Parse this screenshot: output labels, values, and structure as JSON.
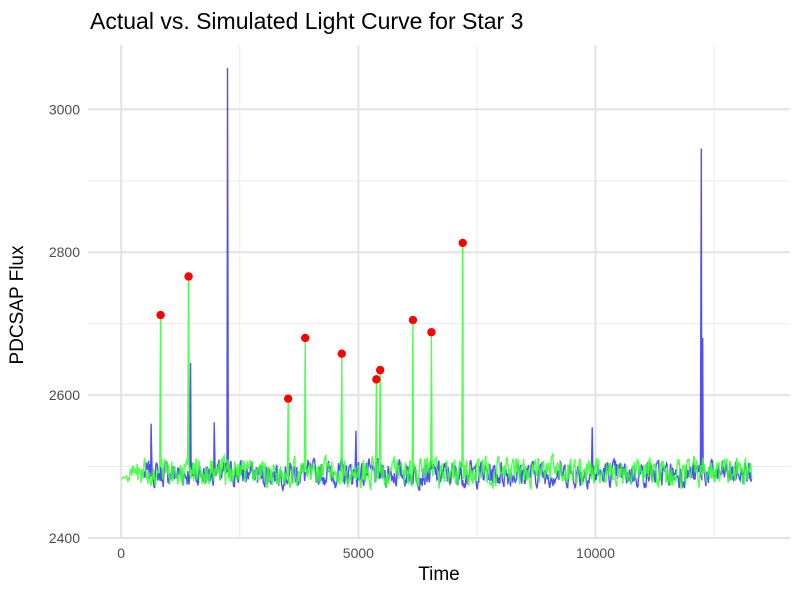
{
  "chart_data": {
    "type": "line",
    "title": "Actual vs. Simulated Light Curve for Star 3",
    "xlabel": "Time",
    "ylabel": "PDCSAP Flux",
    "xlim": [
      -700,
      14100
    ],
    "ylim": [
      2400,
      3090
    ],
    "x_ticks": [
      0,
      5000,
      10000
    ],
    "x_tick_labels": [
      "0",
      "5000",
      "10000"
    ],
    "y_ticks": [
      2400,
      2600,
      2800,
      3000
    ],
    "y_tick_labels": [
      "2400",
      "2600",
      "2800",
      "3000"
    ],
    "grid": true,
    "legend": "none",
    "series": [
      {
        "role": "actual",
        "color": "#3333ee",
        "baseline": 2490,
        "noise_amplitude": 25,
        "x_start": 480,
        "x_end": 13300,
        "spikes": [
          {
            "x": 2240,
            "y": 3058
          },
          {
            "x": 12230,
            "y": 2945
          },
          {
            "x": 1460,
            "y": 2645
          },
          {
            "x": 12260,
            "y": 2680
          },
          {
            "x": 630,
            "y": 2560
          },
          {
            "x": 1960,
            "y": 2562
          },
          {
            "x": 4950,
            "y": 2550
          },
          {
            "x": 9930,
            "y": 2555
          }
        ]
      },
      {
        "role": "simulated",
        "color": "#33ff33",
        "baseline": 2492,
        "noise_amplitude": 28,
        "x_start": 0,
        "x_end": 13300,
        "flares": [
          {
            "x": 830,
            "y": 2712
          },
          {
            "x": 1420,
            "y": 2766
          },
          {
            "x": 3520,
            "y": 2595
          },
          {
            "x": 3880,
            "y": 2680
          },
          {
            "x": 4650,
            "y": 2658
          },
          {
            "x": 5380,
            "y": 2622
          },
          {
            "x": 5460,
            "y": 2635
          },
          {
            "x": 6150,
            "y": 2705
          },
          {
            "x": 6540,
            "y": 2688
          },
          {
            "x": 7200,
            "y": 2813
          }
        ]
      }
    ],
    "flare_markers": {
      "color": "#ff0000",
      "points": [
        {
          "x": 830,
          "y": 2712
        },
        {
          "x": 1420,
          "y": 2766
        },
        {
          "x": 3520,
          "y": 2595
        },
        {
          "x": 3880,
          "y": 2680
        },
        {
          "x": 4650,
          "y": 2658
        },
        {
          "x": 5380,
          "y": 2622
        },
        {
          "x": 5460,
          "y": 2635
        },
        {
          "x": 6150,
          "y": 2705
        },
        {
          "x": 6540,
          "y": 2688
        },
        {
          "x": 7200,
          "y": 2813
        }
      ]
    }
  }
}
